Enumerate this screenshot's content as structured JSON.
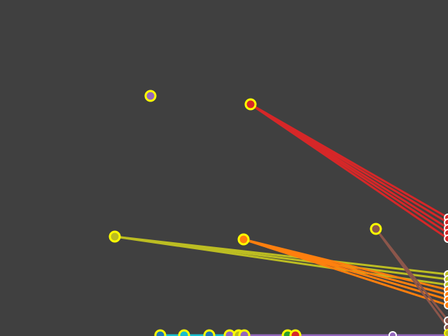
{
  "game": {
    "background": "#404040",
    "node_ring_color": "#ffff00",
    "target_ring_color": "#ffffff",
    "colors": {
      "red": "#d62728",
      "orange": "#ff7f0e",
      "olive": "#bcbd22",
      "brown": "#8c564b",
      "purple": "#9467bd",
      "cyan": "#17becf",
      "green": "#2ca02c",
      "blue": "#1f77b4"
    }
  }
}
